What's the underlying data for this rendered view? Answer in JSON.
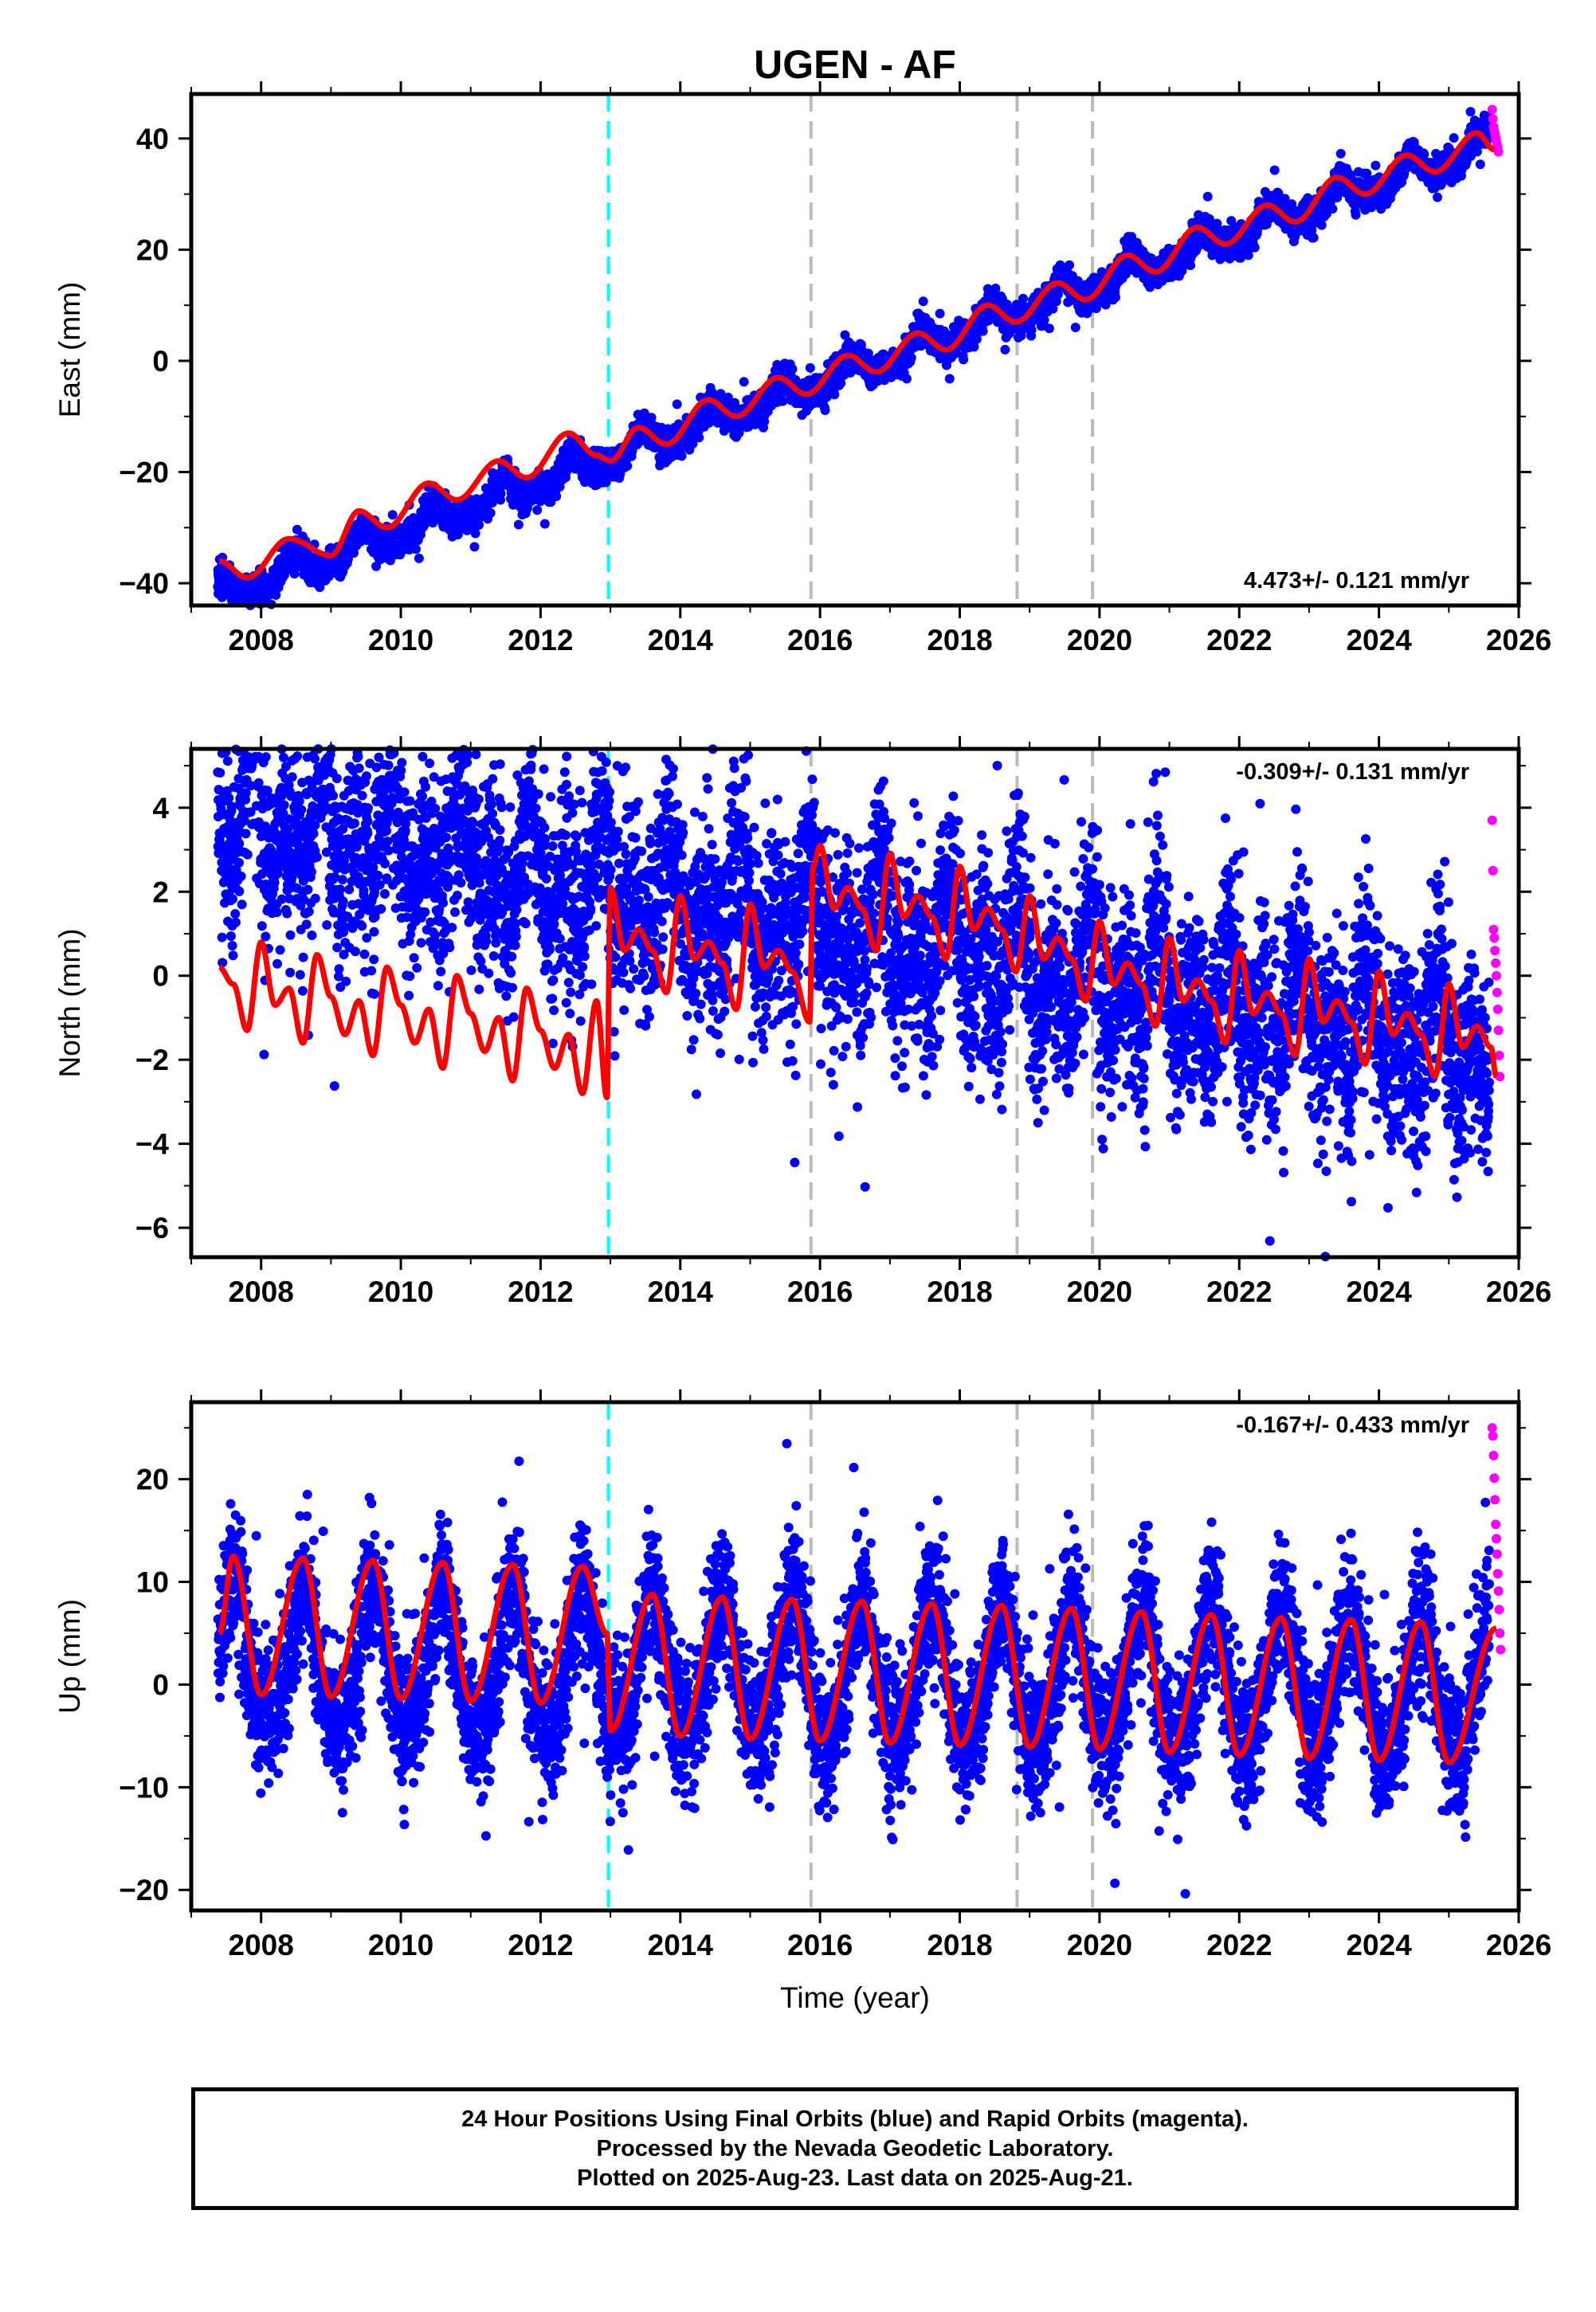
{
  "title": "UGEN - AF",
  "xlabel": "Time (year)",
  "footer": {
    "line1": "24 Hour Positions Using Final Orbits (blue) and Rapid Orbits (magenta).",
    "line2": "Processed by the Nevada Geodetic Laboratory.",
    "line3": "Plotted on 2025-Aug-23. Last data on 2025-Aug-21."
  },
  "colors": {
    "final": "#0000ff",
    "rapid": "#ff00ff",
    "model": "#ff0000",
    "cyan_line": "#00ffff",
    "gray_line": "#bbbbbb"
  },
  "chart_data": [
    {
      "type": "scatter",
      "component": "East",
      "ylabel": "East (mm)",
      "rate": "4.473+/- 0.121 mm/yr",
      "xlim": [
        2007.0,
        2026.0
      ],
      "ylim": [
        -44,
        48
      ],
      "xticks": [
        2008,
        2010,
        2012,
        2014,
        2016,
        2018,
        2020,
        2022,
        2024,
        2026
      ],
      "yticks": [
        -40,
        -20,
        0,
        20,
        40
      ],
      "vlines": [
        {
          "x": 2012.97,
          "kind": "cyan"
        },
        {
          "x": 2015.87,
          "kind": "gray"
        },
        {
          "x": 2018.82,
          "kind": "gray"
        },
        {
          "x": 2019.9,
          "kind": "gray"
        }
      ],
      "model": {
        "x": [
          2007.4,
          2007.8,
          2008.4,
          2009.0,
          2009.4,
          2009.8,
          2010.4,
          2010.8,
          2011.4,
          2011.8,
          2012.4,
          2012.8,
          2013.0,
          2013.4,
          2013.8,
          2014.4,
          2014.8,
          2015.4,
          2015.8,
          2016.4,
          2016.8,
          2017.4,
          2017.8,
          2018.4,
          2018.8,
          2019.4,
          2019.8,
          2020.4,
          2020.8,
          2021.4,
          2021.8,
          2022.4,
          2022.8,
          2023.4,
          2023.8,
          2024.4,
          2024.8,
          2025.4,
          2025.65
        ],
        "y": [
          -36,
          -39,
          -32,
          -35,
          -27,
          -30,
          -22,
          -25,
          -18,
          -21,
          -13,
          -17,
          -18,
          -12,
          -15,
          -7,
          -10,
          -3,
          -6,
          1,
          -2,
          5,
          2,
          10,
          7,
          14,
          11,
          19,
          16,
          24,
          21,
          28,
          25,
          33,
          30,
          37,
          34,
          41,
          38
        ]
      },
      "final": {
        "start": 2007.38,
        "end": 2025.58,
        "rate": 4.473,
        "offset_at_2016": -3.8,
        "annual_amplitude": 2.2,
        "annual_peak": 2007.45,
        "semiannual_amplitude": 0.9,
        "scatter": 1.3,
        "outlier_fraction": 0.02,
        "outlier_scale": 2.5
      },
      "rapid": {
        "x": [
          2025.62,
          2025.63,
          2025.64,
          2025.65,
          2025.66,
          2025.67,
          2025.68,
          2025.69,
          2025.7,
          2025.71
        ],
        "y": [
          45.2,
          43.5,
          42.1,
          41.4,
          40.8,
          40.2,
          39.5,
          38.9,
          38.2,
          37.6
        ]
      }
    },
    {
      "type": "scatter",
      "component": "North",
      "ylabel": "North (mm)",
      "rate": "-0.309+/- 0.131 mm/yr",
      "xlim": [
        2007.0,
        2026.0
      ],
      "ylim": [
        -6.7,
        5.4
      ],
      "xticks": [
        2008,
        2010,
        2012,
        2014,
        2016,
        2018,
        2020,
        2022,
        2024,
        2026
      ],
      "yticks": [
        -6,
        -4,
        -2,
        0,
        2,
        4
      ],
      "vlines": [
        {
          "x": 2012.97,
          "kind": "cyan"
        },
        {
          "x": 2015.87,
          "kind": "gray"
        },
        {
          "x": 2018.82,
          "kind": "gray"
        },
        {
          "x": 2019.9,
          "kind": "gray"
        }
      ],
      "model": {
        "x": [
          2007.4,
          2007.6,
          2007.8,
          2008.0,
          2008.2,
          2008.4,
          2008.6,
          2008.8,
          2009.0,
          2009.2,
          2009.4,
          2009.6,
          2009.8,
          2010.0,
          2010.2,
          2010.4,
          2010.6,
          2010.8,
          2011.0,
          2011.2,
          2011.4,
          2011.6,
          2011.8,
          2012.0,
          2012.2,
          2012.4,
          2012.6,
          2012.8,
          2012.95,
          2013.0,
          2013.2,
          2013.4,
          2013.6,
          2013.8,
          2014.0,
          2014.2,
          2014.4,
          2014.6,
          2014.8,
          2015.0,
          2015.2,
          2015.4,
          2015.6,
          2015.85,
          2015.9,
          2016.0,
          2016.2,
          2016.4,
          2016.6,
          2016.8,
          2017.0,
          2017.2,
          2017.4,
          2017.6,
          2017.8,
          2018.0,
          2018.2,
          2018.4,
          2018.6,
          2018.8,
          2019.0,
          2019.2,
          2019.4,
          2019.6,
          2019.8,
          2020.0,
          2020.2,
          2020.4,
          2020.6,
          2020.8,
          2021.0,
          2021.2,
          2021.4,
          2021.6,
          2021.8,
          2022.0,
          2022.2,
          2022.4,
          2022.6,
          2022.8,
          2023.0,
          2023.2,
          2023.4,
          2023.6,
          2023.8,
          2024.0,
          2024.2,
          2024.4,
          2024.6,
          2024.8,
          2025.0,
          2025.2,
          2025.4,
          2025.6,
          2025.68
        ],
        "y": [
          0.2,
          -0.2,
          -1.3,
          0.8,
          -0.7,
          -0.3,
          -1.6,
          0.5,
          -0.5,
          -1.4,
          -0.6,
          -1.9,
          0.2,
          -0.7,
          -1.6,
          -0.8,
          -2.2,
          0.0,
          -0.9,
          -1.8,
          -1.0,
          -2.5,
          -0.3,
          -1.3,
          -2.2,
          -1.4,
          -2.8,
          -0.6,
          -2.9,
          2.1,
          0.6,
          1.1,
          0.6,
          -0.4,
          1.9,
          0.4,
          0.8,
          0.3,
          -0.8,
          1.7,
          0.2,
          0.6,
          0.1,
          -1.1,
          2.6,
          3.1,
          1.6,
          2.1,
          1.6,
          0.6,
          2.9,
          1.4,
          1.9,
          1.4,
          0.4,
          2.6,
          1.1,
          1.6,
          1.1,
          0.1,
          1.9,
          0.4,
          0.9,
          0.4,
          -0.6,
          1.3,
          -0.2,
          0.3,
          -0.2,
          -1.2,
          0.9,
          -0.6,
          -0.1,
          -0.6,
          -1.6,
          0.6,
          -0.9,
          -0.4,
          -0.9,
          -1.9,
          0.4,
          -1.1,
          -0.6,
          -1.1,
          -2.1,
          0.1,
          -1.4,
          -0.9,
          -1.4,
          -2.4,
          -0.2,
          -1.7,
          -1.2,
          -1.7,
          -2.4
        ]
      },
      "final": {
        "start": 2007.38,
        "end": 2025.58,
        "rate": -0.309,
        "offset_at_2016": 1.2,
        "annual_amplitude": 0.8,
        "annual_peak": 2007.85,
        "semiannual_amplitude": 0.9,
        "scatter": 1.15,
        "outlier_fraction": 0.02,
        "outlier_scale": 2.4
      },
      "rapid": {
        "x": [
          2025.62,
          2025.63,
          2025.64,
          2025.65,
          2025.66,
          2025.67,
          2025.68,
          2025.69,
          2025.7,
          2025.71,
          2025.72,
          2025.73
        ],
        "y": [
          3.7,
          2.5,
          1.1,
          0.9,
          0.6,
          0.3,
          0.0,
          -0.4,
          -0.8,
          -1.3,
          -1.9,
          -2.4
        ]
      }
    },
    {
      "type": "scatter",
      "component": "Up",
      "ylabel": "Up (mm)",
      "rate": "-0.167+/- 0.433 mm/yr",
      "xlim": [
        2007.0,
        2026.0
      ],
      "ylim": [
        -22,
        27.5
      ],
      "xticks": [
        2008,
        2010,
        2012,
        2014,
        2016,
        2018,
        2020,
        2022,
        2024,
        2026
      ],
      "yticks": [
        -20,
        -10,
        0,
        10,
        20
      ],
      "vlines": [
        {
          "x": 2012.97,
          "kind": "cyan"
        },
        {
          "x": 2015.87,
          "kind": "gray"
        },
        {
          "x": 2018.82,
          "kind": "gray"
        },
        {
          "x": 2019.9,
          "kind": "gray"
        }
      ],
      "model": {
        "x": [
          2007.4,
          2007.6,
          2008.0,
          2008.6,
          2009.0,
          2009.6,
          2010.0,
          2010.6,
          2011.0,
          2011.6,
          2012.0,
          2012.6,
          2012.95,
          2013.0,
          2013.6,
          2014.0,
          2014.6,
          2015.0,
          2015.6,
          2016.0,
          2016.6,
          2017.0,
          2017.6,
          2018.0,
          2018.6,
          2019.0,
          2019.6,
          2020.0,
          2020.6,
          2021.0,
          2021.6,
          2022.0,
          2022.6,
          2023.0,
          2023.6,
          2024.0,
          2024.6,
          2025.0,
          2025.68
        ],
        "y": [
          5,
          12.5,
          -1,
          12.3,
          -1.2,
          12.1,
          -1.4,
          11.9,
          -1.6,
          11.7,
          -1.8,
          11.5,
          5,
          -4.5,
          8.8,
          -5,
          8.5,
          -5.3,
          8.3,
          -5.5,
          8.1,
          -5.7,
          7.9,
          -5.9,
          7.7,
          -6.1,
          7.4,
          -6.3,
          7.1,
          -6.6,
          6.8,
          -6.9,
          6.5,
          -7.2,
          6.3,
          -7.4,
          6.1,
          -7.6,
          5.5
        ]
      },
      "final": {
        "start": 2007.38,
        "end": 2025.58,
        "rate": -0.167,
        "offset_at_2016": 1.0,
        "annual_amplitude": 6.8,
        "annual_peak": 2007.6,
        "semiannual_amplitude": 0.8,
        "scatter": 3.3,
        "outlier_fraction": 0.02,
        "outlier_scale": 2.4
      },
      "rapid": {
        "x": [
          2025.62,
          2025.63,
          2025.64,
          2025.65,
          2025.66,
          2025.67,
          2025.68,
          2025.69,
          2025.7,
          2025.71,
          2025.72,
          2025.73,
          2025.74
        ],
        "y": [
          25.0,
          24.2,
          22.3,
          20.1,
          18.0,
          15.6,
          14.2,
          12.7,
          10.8,
          9.1,
          7.3,
          5.0,
          3.4
        ]
      }
    }
  ]
}
